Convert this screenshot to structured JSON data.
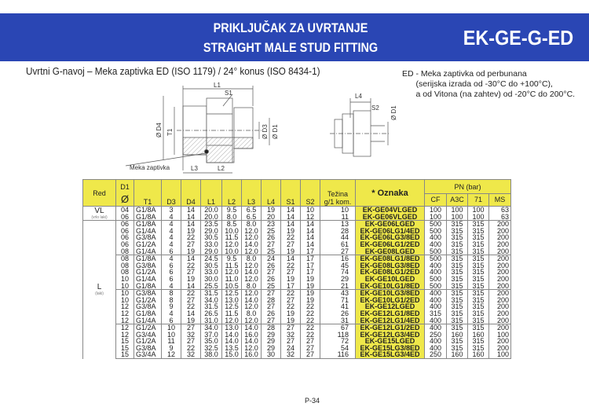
{
  "header": {
    "title_sr": "PRIKLJUČAK ZA UVRTANJE",
    "title_en": "STRAIGHT MALE STUD FITTING",
    "code": "EK-GE-G-ED",
    "brand_color": "#2a46b4"
  },
  "subtitle": "Uvrtni G-navoj – Meka zaptivka ED (ISO 1179) /  24° konus (ISO 8434-1)",
  "note": "ED - Meka zaptivka od perbunana\n      (serijska izrada od -30°C do +100°C),\n      a od Vitona (na zahtev) od -20°C do 200°C.",
  "drawing": {
    "labels": {
      "L1": "L1",
      "S1": "S1",
      "D4": "Ø D4",
      "T1": "T1",
      "D3": "Ø D3",
      "D1": "Ø D1",
      "L3": "L3",
      "L2": "L2",
      "L4": "L4",
      "S2": "S2",
      "D1b": "Ø D1",
      "seal": "Meka zaptivka"
    }
  },
  "table": {
    "headers": {
      "red": "Red",
      "d1": "D1",
      "d1_sym": "Ø",
      "t1": "T1",
      "d3": "D3",
      "d4": "D4",
      "l1": "L1",
      "l2": "L2",
      "l3": "L3",
      "l4": "L4",
      "s1": "S1",
      "s2": "S2",
      "weight": "Težina g/1 kom.",
      "oznaka": "* Oznaka",
      "pn": "PN (bar)",
      "cf": "CF",
      "a3c": "A3C",
      "p71": "71",
      "ms": "MS"
    },
    "highlight_color": "#efe84a",
    "groups": [
      {
        "red": "VL",
        "red_note": "(vrlo laki)",
        "rows": [
          [
            "04",
            "G1/8A",
            "3",
            "14",
            "20.0",
            "9.5",
            "6.5",
            "19",
            "14",
            "10",
            "10",
            "EK-GE04VLGED",
            "100",
            "100",
            "100",
            "63"
          ],
          [
            "06",
            "G1/8A",
            "4",
            "14",
            "20.0",
            "8.0",
            "6.5",
            "20",
            "14",
            "12",
            "11",
            "EK-GE06VLGED",
            "100",
            "100",
            "100",
            "63"
          ]
        ]
      },
      {
        "red": "L",
        "red_note": "(laki)",
        "rows": [
          [
            "06",
            "G1/8A",
            "4",
            "14",
            "23.5",
            "8.5",
            "8.0",
            "23",
            "14",
            "14",
            "13",
            "EK-GE06LGED",
            "500",
            "315",
            "315",
            "200"
          ],
          [
            "06",
            "G1/4A",
            "4",
            "19",
            "29.0",
            "10.0",
            "12.0",
            "25",
            "19",
            "14",
            "28",
            "EK-GE06LG1/4ED",
            "500",
            "315",
            "315",
            "200"
          ],
          [
            "06",
            "G3/8A",
            "4",
            "22",
            "30.5",
            "11.5",
            "12.0",
            "26",
            "22",
            "14",
            "44",
            "EK-GE06LG3/8ED",
            "400",
            "315",
            "315",
            "200"
          ],
          [
            "06",
            "G1/2A",
            "4",
            "27",
            "33.0",
            "12.0",
            "14.0",
            "27",
            "27",
            "14",
            "61",
            "EK-GE06LG1/2ED",
            "400",
            "315",
            "315",
            "200"
          ],
          [
            "08",
            "G1/4A",
            "6",
            "19",
            "29.0",
            "10.0",
            "12.0",
            "25",
            "19",
            "17",
            "27",
            "EK-GE08LGED",
            "500",
            "315",
            "315",
            "200"
          ],
          [
            "08",
            "G1/8A",
            "4",
            "14",
            "24.5",
            "9.5",
            "8.0",
            "24",
            "14",
            "17",
            "16",
            "EK-GE08LG1/8ED",
            "500",
            "315",
            "315",
            "200"
          ],
          [
            "08",
            "G3/8A",
            "6",
            "22",
            "30.5",
            "11.5",
            "12.0",
            "26",
            "22",
            "17",
            "45",
            "EK-GE08LG3/8ED",
            "400",
            "315",
            "315",
            "200"
          ],
          [
            "08",
            "G1/2A",
            "6",
            "27",
            "33.0",
            "12.0",
            "14.0",
            "27",
            "27",
            "17",
            "74",
            "EK-GE08LG1/2ED",
            "400",
            "315",
            "315",
            "200"
          ],
          [
            "10",
            "G1/4A",
            "6",
            "19",
            "30.0",
            "11.0",
            "12.0",
            "26",
            "19",
            "19",
            "29",
            "EK-GE10LGED",
            "500",
            "315",
            "315",
            "200"
          ],
          [
            "10",
            "G1/8A",
            "4",
            "14",
            "25.5",
            "10.5",
            "8.0",
            "25",
            "17",
            "19",
            "21",
            "EK-GE10LG1/8ED",
            "500",
            "315",
            "315",
            "200"
          ],
          [
            "10",
            "G3/8A",
            "8",
            "22",
            "31.5",
            "12.5",
            "12.0",
            "27",
            "22",
            "19",
            "43",
            "EK-GE10LG3/8ED",
            "400",
            "315",
            "315",
            "200"
          ],
          [
            "10",
            "G1/2A",
            "8",
            "27",
            "34.0",
            "13.0",
            "14.0",
            "28",
            "27",
            "19",
            "71",
            "EK-GE10LG1/2ED",
            "400",
            "315",
            "315",
            "200"
          ],
          [
            "12",
            "G3/8A",
            "9",
            "22",
            "31.5",
            "12.5",
            "12.0",
            "27",
            "22",
            "22",
            "41",
            "EK-GE12LGED",
            "400",
            "315",
            "315",
            "200"
          ],
          [
            "12",
            "G1/8A",
            "4",
            "14",
            "26.5",
            "11.5",
            "8.0",
            "26",
            "19",
            "22",
            "26",
            "EK-GE12LG1/8ED",
            "315",
            "315",
            "315",
            "200"
          ],
          [
            "12",
            "G1/4A",
            "6",
            "19",
            "31.0",
            "12.0",
            "12.0",
            "27",
            "19",
            "22",
            "31",
            "EK-GE12LG1/4ED",
            "400",
            "315",
            "315",
            "200"
          ],
          [
            "12",
            "G1/2A",
            "10",
            "27",
            "34.0",
            "13.0",
            "14.0",
            "28",
            "27",
            "22",
            "67",
            "EK-GE12LG1/2ED",
            "400",
            "315",
            "315",
            "200"
          ],
          [
            "12",
            "G3/4A",
            "10",
            "32",
            "37.0",
            "14.0",
            "16.0",
            "29",
            "32",
            "22",
            "118",
            "EK-GE12LG3/4ED",
            "250",
            "160",
            "160",
            "100"
          ],
          [
            "15",
            "G1/2A",
            "11",
            "27",
            "35.0",
            "14.0",
            "14.0",
            "29",
            "27",
            "27",
            "72",
            "EK-GE15LGED",
            "400",
            "315",
            "315",
            "200"
          ],
          [
            "15",
            "G3/8A",
            "9",
            "22",
            "32.5",
            "13.5",
            "12.0",
            "29",
            "24",
            "27",
            "54",
            "EK-GE15LG3/8ED",
            "400",
            "315",
            "315",
            "200"
          ],
          [
            "15",
            "G3/4A",
            "12",
            "32",
            "38.0",
            "15.0",
            "16.0",
            "30",
            "32",
            "27",
            "116",
            "EK-GE15LG3/4ED",
            "250",
            "160",
            "160",
            "100"
          ]
        ]
      }
    ]
  },
  "page_number": "P-34"
}
